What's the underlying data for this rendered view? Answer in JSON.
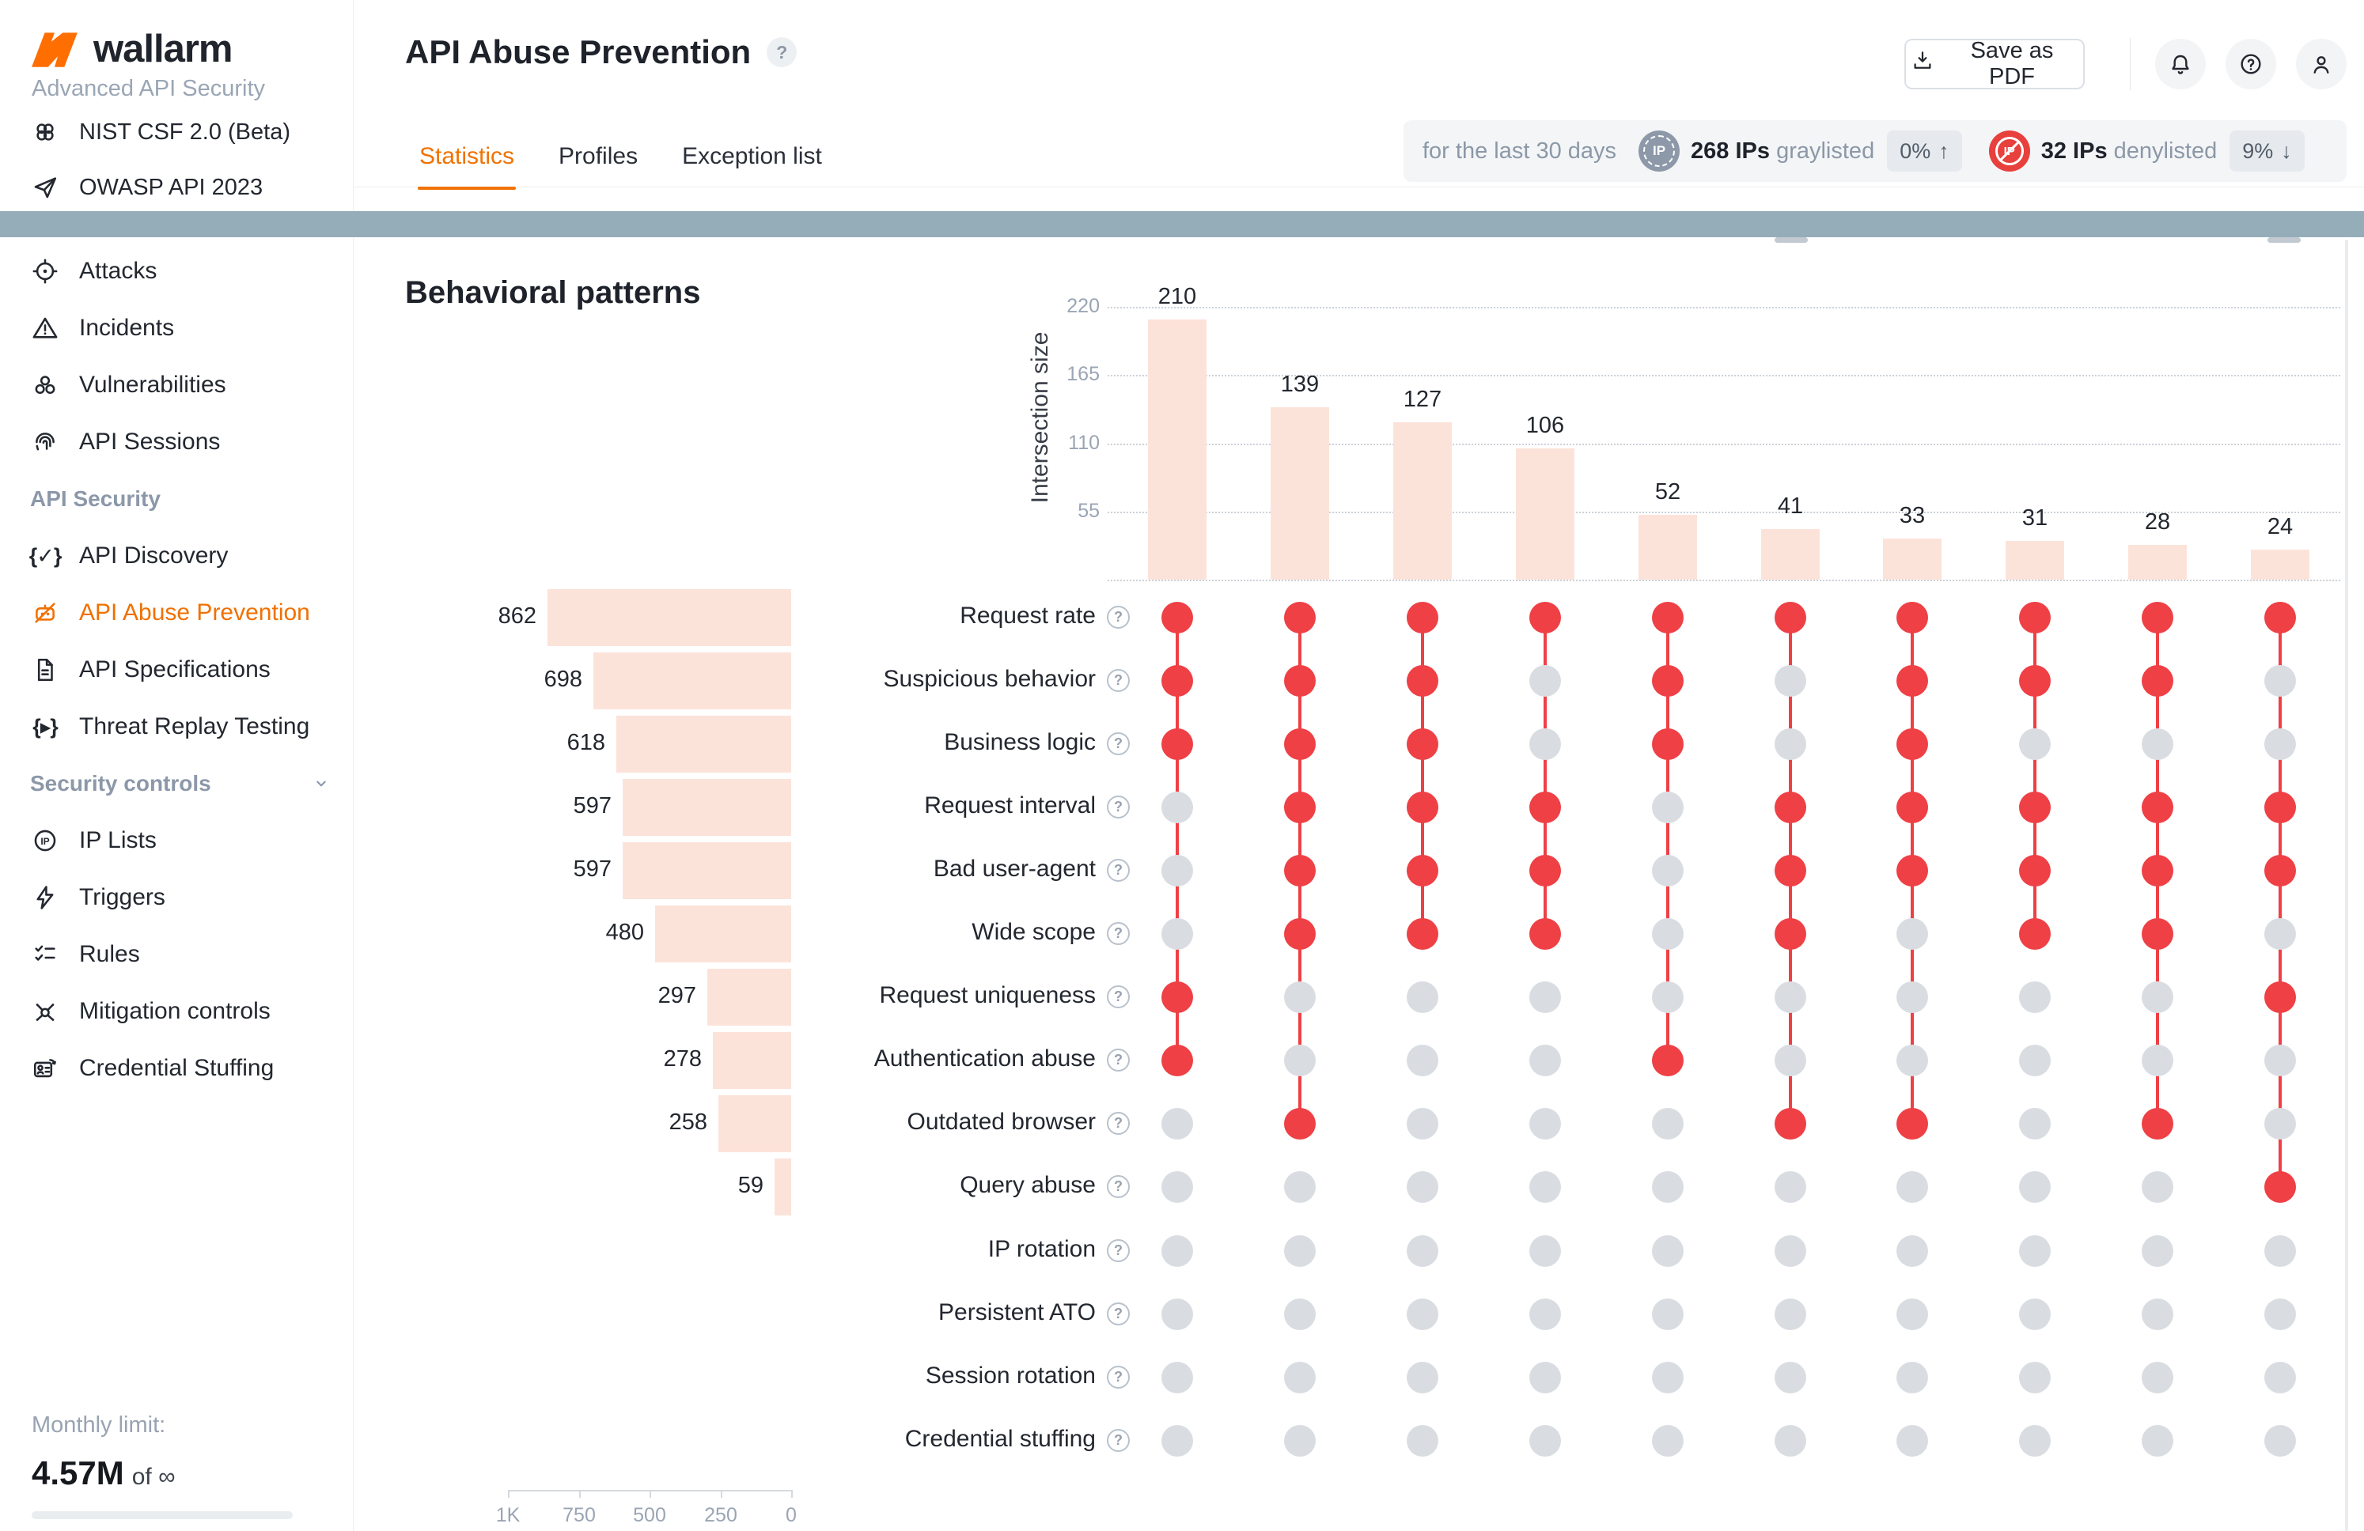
{
  "brand": {
    "logo_text": "wallarm",
    "tagline": "Advanced API Security"
  },
  "sidebar": {
    "top_links": [
      {
        "icon": "nist-icon",
        "label": "NIST CSF 2.0 (Beta)"
      },
      {
        "icon": "owasp-icon",
        "label": "OWASP API 2023"
      }
    ],
    "groups": [
      {
        "header": "",
        "chevron": false,
        "items": [
          {
            "icon": "attacks-icon",
            "label": "Attacks",
            "active": false
          },
          {
            "icon": "incidents-icon",
            "label": "Incidents",
            "active": false
          },
          {
            "icon": "vulnerabilities-icon",
            "label": "Vulnerabilities",
            "active": false
          },
          {
            "icon": "api-sessions-icon",
            "label": "API Sessions",
            "active": false
          }
        ]
      },
      {
        "header": "API Security",
        "chevron": false,
        "items": [
          {
            "icon": "api-discovery-icon",
            "label": "API Discovery",
            "active": false
          },
          {
            "icon": "api-abuse-prevention-icon",
            "label": "API Abuse Prevention",
            "active": true
          },
          {
            "icon": "api-specifications-icon",
            "label": "API Specifications",
            "active": false
          },
          {
            "icon": "threat-replay-icon",
            "label": "Threat Replay Testing",
            "active": false
          }
        ]
      },
      {
        "header": "Security controls",
        "chevron": true,
        "items": [
          {
            "icon": "ip-lists-icon",
            "label": "IP Lists",
            "active": false
          },
          {
            "icon": "triggers-icon",
            "label": "Triggers",
            "active": false
          },
          {
            "icon": "rules-icon",
            "label": "Rules",
            "active": false
          },
          {
            "icon": "mitigation-controls-icon",
            "label": "Mitigation controls",
            "active": false
          },
          {
            "icon": "credential-stuffing-icon",
            "label": "Credential Stuffing",
            "active": false
          }
        ]
      }
    ],
    "monthly_limit": {
      "label": "Monthly limit:",
      "value": "4.57M",
      "suffix": "of ∞"
    }
  },
  "header": {
    "title": "API Abuse Prevention",
    "help_glyph": "?",
    "save_pdf_label": "Save as PDF",
    "tabs": [
      {
        "label": "Statistics",
        "active": true
      },
      {
        "label": "Profiles",
        "active": false
      },
      {
        "label": "Exception list",
        "active": false
      }
    ],
    "stats": {
      "period": "for the last 30 days",
      "ip_icon_text": "IP",
      "graylisted_value": "268 IPs",
      "graylisted_label": "graylisted",
      "graylisted_delta": "0%",
      "graylisted_direction_glyph": "↑",
      "denylisted_value": "32 IPs",
      "denylisted_label": "denylisted",
      "denylisted_delta": "9%",
      "denylisted_direction_glyph": "↓"
    }
  },
  "chart_data": {
    "type": "upset",
    "title": "Behavioral patterns",
    "intersection_axis_label": "Intersection size",
    "intersection_ticks": [
      220,
      165,
      110,
      55
    ],
    "intersection_axis_max": 220,
    "set_axis_tick_labels": [
      "1K",
      "750",
      "500",
      "250",
      "0"
    ],
    "set_axis_tick_values": [
      1000,
      750,
      500,
      250,
      0
    ],
    "set_axis_max": 1000,
    "categories": [
      "Request rate",
      "Suspicious behavior",
      "Business logic",
      "Request interval",
      "Bad user-agent",
      "Wide scope",
      "Request uniqueness",
      "Authentication abuse",
      "Outdated browser",
      "Query abuse",
      "IP rotation",
      "Persistent ATO",
      "Session rotation",
      "Credential stuffing"
    ],
    "set_sizes": [
      862,
      698,
      618,
      597,
      597,
      480,
      297,
      278,
      258,
      59,
      0,
      0,
      0,
      0
    ],
    "intersections": [
      {
        "size": 210,
        "members": [
          0,
          1,
          2,
          6,
          7
        ]
      },
      {
        "size": 139,
        "members": [
          0,
          1,
          2,
          3,
          4,
          5,
          8
        ]
      },
      {
        "size": 127,
        "members": [
          0,
          1,
          2,
          3,
          4,
          5
        ]
      },
      {
        "size": 106,
        "members": [
          0,
          3,
          4,
          5
        ]
      },
      {
        "size": 52,
        "members": [
          0,
          1,
          2,
          7
        ]
      },
      {
        "size": 41,
        "members": [
          0,
          3,
          4,
          5,
          8
        ]
      },
      {
        "size": 33,
        "members": [
          0,
          1,
          2,
          3,
          4,
          8
        ]
      },
      {
        "size": 31,
        "members": [
          0,
          1,
          3,
          4,
          5
        ]
      },
      {
        "size": 28,
        "members": [
          0,
          1,
          3,
          4,
          5,
          8
        ]
      },
      {
        "size": 24,
        "members": [
          0,
          3,
          4,
          6,
          9
        ]
      }
    ],
    "grid": true,
    "legend": false
  },
  "colors": {
    "brand_orange": "#ff6e00",
    "accent_orange": "#f07200",
    "active_dot_red": "#ee4045",
    "inactive_dot_gray": "#d9dde2",
    "bar_pink": "#fce3da",
    "band_teal": "#95adb9",
    "denylist_red": "#e8403d",
    "graylist_gray": "#8d99a8",
    "text_dark": "#20242c",
    "text_muted": "#8c98a7"
  }
}
